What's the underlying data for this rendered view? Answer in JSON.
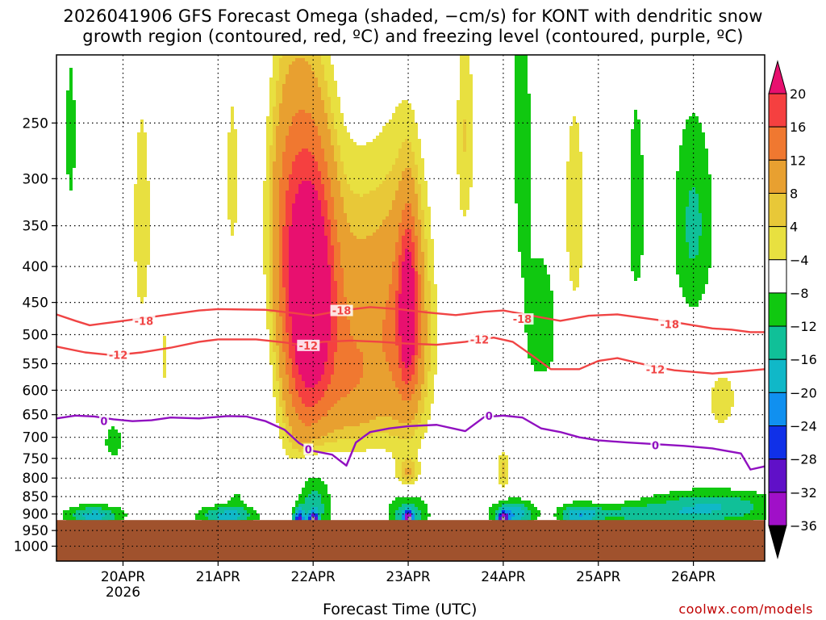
{
  "title_line1": "2026041906 GFS Forecast Omega (shaded, −cm/s) for KONT with dendritic snow",
  "title_line2": "growth region (contoured, red, ºC) and freezing level (contoured, purple, ºC)",
  "x_axis_title": "Forecast Time (UTC)",
  "watermark": "coolwx.com/models",
  "chart_data": {
    "type": "heatmap",
    "y_axis": {
      "type": "pressure",
      "range": [
        1050,
        200
      ],
      "ticks": [
        250,
        300,
        350,
        400,
        450,
        500,
        550,
        600,
        650,
        700,
        750,
        800,
        850,
        900,
        950,
        1000
      ]
    },
    "x_axis": {
      "range_days": [
        -0.7,
        6.75
      ],
      "ticks": [
        {
          "day": 0,
          "label": "20APR",
          "sub": "2026"
        },
        {
          "day": 1,
          "label": "21APR"
        },
        {
          "day": 2,
          "label": "22APR"
        },
        {
          "day": 3,
          "label": "23APR"
        },
        {
          "day": 4,
          "label": "24APR"
        },
        {
          "day": 5,
          "label": "25APR"
        },
        {
          "day": 6,
          "label": "26APR"
        }
      ]
    },
    "ground_level_hpa": 918,
    "colorbar": {
      "labels": [
        "20",
        "16",
        "12",
        "8",
        "4",
        "−4",
        "−8",
        "−12",
        "−16",
        "−20",
        "−24",
        "−28",
        "−32",
        "−36"
      ],
      "bins": [
        {
          "color": "#e8106f"
        },
        {
          "color": "#f54040"
        },
        {
          "color": "#f07830"
        },
        {
          "color": "#e8a030"
        },
        {
          "color": "#e8c838"
        },
        {
          "color": "#e8e040"
        },
        {
          "color": "#ffffff"
        },
        {
          "color": "#10c810"
        },
        {
          "color": "#10c098"
        },
        {
          "color": "#10b8c8"
        },
        {
          "color": "#1090f0"
        },
        {
          "color": "#1030e8"
        },
        {
          "color": "#6010c8"
        },
        {
          "color": "#a010c8"
        },
        {
          "color": "#a0a0a0"
        },
        {
          "color": "#000000"
        }
      ]
    },
    "omega_features": [
      {
        "d": 2.0,
        "p": 420,
        "dd": 0.24,
        "dp": 170,
        "v": 18
      },
      {
        "d": 1.9,
        "p": 520,
        "dd": 0.28,
        "dp": 260,
        "v": 13
      },
      {
        "d": 1.7,
        "p": 330,
        "dd": 0.22,
        "dp": 160,
        "v": 8
      },
      {
        "d": 2.5,
        "p": 460,
        "dd": 0.45,
        "dp": 200,
        "v": 9
      },
      {
        "d": 3.0,
        "p": 460,
        "dd": 0.1,
        "dp": 120,
        "v": 16
      },
      {
        "d": 3.0,
        "p": 500,
        "dd": 0.3,
        "dp": 240,
        "v": 10
      },
      {
        "d": 2.4,
        "p": 620,
        "dd": 0.35,
        "dp": 120,
        "v": 6
      },
      {
        "d": 0.2,
        "p": 350,
        "dd": 0.12,
        "dp": 160,
        "v": 6
      },
      {
        "d": 1.15,
        "p": 300,
        "dd": 0.1,
        "dp": 130,
        "v": 5
      },
      {
        "d": 3.6,
        "p": 260,
        "dd": 0.12,
        "dp": 120,
        "v": 6
      },
      {
        "d": 4.75,
        "p": 340,
        "dd": 0.14,
        "dp": 150,
        "v": 6
      },
      {
        "d": 4.0,
        "p": 780,
        "dd": 0.08,
        "dp": 60,
        "v": 7
      },
      {
        "d": 3.0,
        "p": 790,
        "dd": 0.12,
        "dp": 40,
        "v": 6
      },
      {
        "d": 0.45,
        "p": 540,
        "dd": 0.05,
        "dp": 150,
        "v": 4.5
      },
      {
        "d": 6.3,
        "p": 620,
        "dd": 0.25,
        "dp": 100,
        "v": 5
      },
      {
        "d": 4.4,
        "p": 620,
        "dd": 0.2,
        "dp": 60,
        "v": 5
      },
      {
        "d": 6.0,
        "p": 350,
        "dd": 0.22,
        "dp": 120,
        "v": -9
      },
      {
        "d": 5.4,
        "p": 330,
        "dd": 0.1,
        "dp": 120,
        "v": -7
      },
      {
        "d": 4.4,
        "p": 500,
        "dd": 0.18,
        "dp": 130,
        "v": -8
      },
      {
        "d": 4.2,
        "p": 260,
        "dd": 0.1,
        "dp": 150,
        "v": -7
      },
      {
        "d": 1.2,
        "p": 850,
        "dd": 0.1,
        "dp": 40,
        "v": -4
      },
      {
        "d": -0.55,
        "p": 260,
        "dd": 0.07,
        "dp": 80,
        "v": -6
      },
      {
        "d": -0.1,
        "p": 710,
        "dd": 0.12,
        "dp": 50,
        "v": -6
      },
      {
        "d": 6.2,
        "p": 880,
        "dd": 0.7,
        "dp": 50,
        "v": -12
      },
      {
        "d": 5.3,
        "p": 900,
        "dd": 0.6,
        "dp": 30,
        "v": -8
      },
      {
        "d": 2.0,
        "p": 870,
        "dd": 0.2,
        "dp": 110,
        "v": -12
      },
      {
        "d": 2.0,
        "p": 920,
        "dd": 0.05,
        "dp": 25,
        "v": -26
      },
      {
        "d": 1.85,
        "p": 915,
        "dd": 0.05,
        "dp": 30,
        "v": -22
      },
      {
        "d": 3.0,
        "p": 900,
        "dd": 0.22,
        "dp": 60,
        "v": -12
      },
      {
        "d": 3.0,
        "p": 915,
        "dd": 0.05,
        "dp": 25,
        "v": -24
      },
      {
        "d": 4.8,
        "p": 905,
        "dd": 0.2,
        "dp": 35,
        "v": -12
      },
      {
        "d": 4.1,
        "p": 900,
        "dd": 0.22,
        "dp": 40,
        "v": -16
      },
      {
        "d": 4.0,
        "p": 915,
        "dd": 0.05,
        "dp": 20,
        "v": -24
      },
      {
        "d": -0.3,
        "p": 905,
        "dd": 0.3,
        "dp": 30,
        "v": -14
      },
      {
        "d": 1.1,
        "p": 905,
        "dd": 0.3,
        "dp": 30,
        "v": -14
      }
    ],
    "contours": [
      {
        "name": "-18",
        "color": "#f04444",
        "label": "-18",
        "points": [
          [
            -0.7,
            468
          ],
          [
            -0.5,
            478
          ],
          [
            -0.35,
            485
          ],
          [
            -0.1,
            480
          ],
          [
            0.2,
            474
          ],
          [
            0.5,
            468
          ],
          [
            0.8,
            462
          ],
          [
            1.0,
            460
          ],
          [
            1.5,
            461
          ],
          [
            1.8,
            466
          ],
          [
            2.0,
            470
          ],
          [
            2.3,
            462
          ],
          [
            2.6,
            457
          ],
          [
            2.9,
            460
          ],
          [
            3.2,
            465
          ],
          [
            3.5,
            469
          ],
          [
            3.8,
            464
          ],
          [
            4.0,
            462
          ],
          [
            4.3,
            470
          ],
          [
            4.6,
            478
          ],
          [
            4.9,
            470
          ],
          [
            5.2,
            468
          ],
          [
            5.5,
            474
          ],
          [
            5.8,
            480
          ],
          [
            6.0,
            485
          ],
          [
            6.2,
            490
          ],
          [
            6.4,
            492
          ],
          [
            6.6,
            496
          ],
          [
            6.75,
            496
          ]
        ],
        "label_points": [
          [
            0.22,
            478
          ],
          [
            2.3,
            462
          ],
          [
            4.2,
            475
          ],
          [
            5.75,
            483
          ]
        ]
      },
      {
        "name": "-12",
        "color": "#f04444",
        "label": "-12",
        "points": [
          [
            -0.7,
            520
          ],
          [
            -0.4,
            530
          ],
          [
            -0.1,
            535
          ],
          [
            0.2,
            530
          ],
          [
            0.5,
            522
          ],
          [
            0.8,
            512
          ],
          [
            1.0,
            508
          ],
          [
            1.4,
            508
          ],
          [
            1.7,
            513
          ],
          [
            1.9,
            518
          ],
          [
            2.1,
            512
          ],
          [
            2.4,
            510
          ],
          [
            2.7,
            512
          ],
          [
            3.0,
            515
          ],
          [
            3.3,
            517
          ],
          [
            3.6,
            512
          ],
          [
            3.9,
            505
          ],
          [
            4.1,
            512
          ],
          [
            4.3,
            535
          ],
          [
            4.5,
            560
          ],
          [
            4.8,
            560
          ],
          [
            5.0,
            545
          ],
          [
            5.2,
            540
          ],
          [
            5.4,
            548
          ],
          [
            5.6,
            556
          ],
          [
            5.8,
            562
          ],
          [
            6.0,
            565
          ],
          [
            6.2,
            568
          ],
          [
            6.5,
            564
          ],
          [
            6.75,
            560
          ]
        ],
        "label_points": [
          [
            -0.05,
            534
          ],
          [
            1.95,
            518
          ],
          [
            3.75,
            508
          ],
          [
            5.6,
            560
          ]
        ]
      },
      {
        "name": "0",
        "color": "#9010c0",
        "label": "0",
        "points": [
          [
            -0.7,
            658
          ],
          [
            -0.5,
            652
          ],
          [
            -0.3,
            654
          ],
          [
            -0.1,
            660
          ],
          [
            0.1,
            664
          ],
          [
            0.3,
            662
          ],
          [
            0.5,
            656
          ],
          [
            0.8,
            658
          ],
          [
            1.1,
            653
          ],
          [
            1.3,
            654
          ],
          [
            1.5,
            664
          ],
          [
            1.7,
            683
          ],
          [
            1.85,
            713
          ],
          [
            2.0,
            732
          ],
          [
            2.2,
            741
          ],
          [
            2.35,
            768
          ],
          [
            2.45,
            712
          ],
          [
            2.6,
            688
          ],
          [
            2.8,
            680
          ],
          [
            3.0,
            675
          ],
          [
            3.3,
            672
          ],
          [
            3.6,
            686
          ],
          [
            3.8,
            655
          ],
          [
            4.0,
            652
          ],
          [
            4.2,
            656
          ],
          [
            4.4,
            680
          ],
          [
            4.6,
            688
          ],
          [
            4.8,
            700
          ],
          [
            5.0,
            707
          ],
          [
            5.3,
            712
          ],
          [
            5.6,
            716
          ],
          [
            5.9,
            720
          ],
          [
            6.2,
            726
          ],
          [
            6.5,
            738
          ],
          [
            6.6,
            778
          ],
          [
            6.75,
            770
          ]
        ],
        "label_points": [
          [
            -0.2,
            664
          ],
          [
            1.95,
            728
          ],
          [
            3.85,
            652
          ],
          [
            5.6,
            718
          ]
        ]
      }
    ]
  }
}
